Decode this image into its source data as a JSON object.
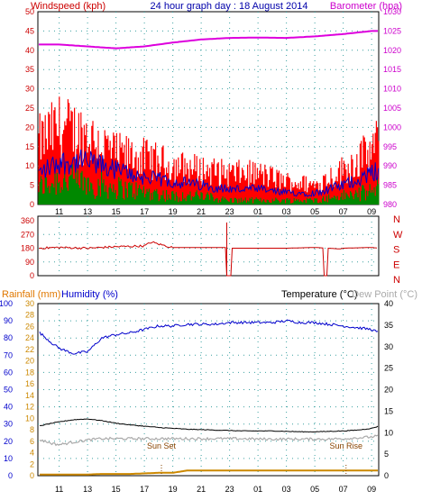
{
  "header": {
    "windspeed_label": "Windspeed (kph)",
    "title": "24 hour graph day : 18 August 2014",
    "barometer_label": "Barometer (hpa)"
  },
  "colors": {
    "panel_bg": "#ffffff",
    "grid": "#3aa0a0",
    "axis_left_red": "#cc0000",
    "axis_right_magenta": "#cc00cc",
    "wind_gust": "#ff0000",
    "wind_avg": "#0000cc",
    "wind_low": "#008800",
    "barometer": "#dd00dd",
    "direction": "#cc0000",
    "humidity": "#0000cc",
    "rain_label": "#e07800",
    "rain_axis": "#cc8800",
    "humidity_label": "#0000cc",
    "temperature": "#000000",
    "dew_point": "#aaaaaa",
    "humidity_axis": "#0000cc"
  },
  "x_ticks": [
    "11",
    "13",
    "15",
    "17",
    "19",
    "21",
    "23",
    "01",
    "03",
    "05",
    "07",
    "09"
  ],
  "chart_data": [
    {
      "type": "line",
      "panel": "wind_barometer",
      "title": "24 hour graph day : 18 August 2014",
      "y_left": {
        "label": "Windspeed (kph)",
        "range": [
          0,
          50
        ],
        "ticks": [
          "0",
          "5",
          "10",
          "15",
          "20",
          "25",
          "30",
          "35",
          "40",
          "45",
          "50"
        ]
      },
      "y_right": {
        "label": "Barometer (hpa)",
        "range": [
          980,
          1030
        ],
        "ticks": [
          "980",
          "985",
          "990",
          "995",
          "1000",
          "1005",
          "1010",
          "1015",
          "1020",
          "1025",
          "1030"
        ]
      },
      "x_hours": [
        9.5,
        11,
        13,
        15,
        17,
        19,
        21,
        23,
        25,
        27,
        29,
        31,
        33,
        33.5
      ],
      "series": [
        {
          "values": [
            16,
            20,
            18,
            13,
            12,
            10,
            9,
            8,
            8,
            6,
            5,
            9,
            14,
            16
          ],
          "style": "gust-band"
        },
        {
          "values": [
            8,
            11,
            11,
            9,
            7,
            6,
            5,
            4,
            4,
            3,
            3,
            5,
            8,
            9
          ],
          "style": "average"
        },
        {
          "values": [
            4,
            6,
            5,
            4,
            3,
            2,
            2,
            1,
            1,
            1,
            1,
            2,
            3,
            4
          ],
          "style": "low-band"
        },
        {
          "values": [
            1021.5,
            1021.5,
            1021,
            1020.5,
            1021,
            1022,
            1022.8,
            1023.2,
            1023.3,
            1023.2,
            1023.6,
            1024.2,
            1025,
            1025
          ],
          "axis": "right"
        }
      ]
    },
    {
      "type": "line",
      "panel": "wind_direction",
      "y_left": {
        "range": [
          0,
          360
        ],
        "ticks": [
          "0",
          "90",
          "180",
          "270",
          "360"
        ]
      },
      "y_right_labels": [
        "N",
        "W",
        "S",
        "E",
        "N"
      ],
      "x_hours": [
        9.5,
        11,
        13,
        15,
        17,
        17.5,
        18.5,
        19,
        21,
        23,
        23.1,
        25,
        27,
        29,
        29.9,
        30.8,
        31,
        33,
        33.5
      ],
      "series": [
        {
          "values": [
            180,
            185,
            180,
            190,
            195,
            220,
            195,
            185,
            185,
            185,
            180,
            180,
            180,
            185,
            180,
            175,
            180,
            185,
            180
          ]
        }
      ],
      "dropouts_hours": [
        22.8,
        23.1,
        29.6,
        29.9
      ]
    },
    {
      "type": "line",
      "panel": "rain_humidity_temperature",
      "rain_axis": {
        "label": "Rainfall (mm)",
        "range": [
          0,
          30
        ],
        "ticks": [
          "0",
          "2",
          "4",
          "6",
          "8",
          "10",
          "12",
          "14",
          "16",
          "18",
          "20",
          "22",
          "24",
          "26",
          "28",
          "30"
        ]
      },
      "humidity_axis": {
        "label": "Humidity (%)",
        "range": [
          0,
          100
        ],
        "ticks": [
          "0",
          "10",
          "20",
          "30",
          "40",
          "50",
          "60",
          "70",
          "80",
          "90",
          "100"
        ]
      },
      "temperature_axis": {
        "label": "Temperature (°C)",
        "range": [
          0,
          40
        ],
        "ticks": [
          "0",
          "5",
          "10",
          "15",
          "20",
          "25",
          "30",
          "35",
          "40"
        ]
      },
      "dew_point_label": "Dew Point (°C)",
      "x_hours": [
        9.5,
        10.5,
        11,
        12,
        13,
        14,
        15,
        16,
        17,
        18,
        19,
        20,
        21,
        22,
        23,
        24,
        25,
        26,
        27,
        28,
        29,
        30,
        31,
        32,
        33,
        33.5
      ],
      "series": [
        {
          "name": "Humidity (%)",
          "axis": "humidity",
          "values": [
            84,
            77,
            74,
            71,
            72,
            80,
            82,
            83,
            85,
            87,
            87,
            88,
            88,
            88,
            89,
            89,
            89,
            89,
            90,
            89,
            89,
            88,
            87,
            86,
            85,
            83
          ]
        },
        {
          "name": "Temperature (°C)",
          "axis": "temperature",
          "values": [
            11.5,
            12.2,
            12.5,
            13,
            13.2,
            12.8,
            12.2,
            11.8,
            11.5,
            11.2,
            11,
            10.8,
            10.7,
            10.6,
            10.5,
            10.4,
            10.4,
            10.4,
            10.3,
            10.2,
            10.2,
            10.3,
            10.4,
            10.6,
            11,
            11.5
          ]
        },
        {
          "name": "Dew Point (°C)",
          "axis": "temperature",
          "values": [
            8.5,
            7.5,
            7.2,
            7.8,
            8.3,
            8.6,
            8.6,
            8.6,
            8.6,
            8.6,
            8.6,
            8.6,
            8.6,
            8.6,
            8.6,
            8.6,
            8.5,
            8.5,
            8.5,
            8.5,
            8.5,
            8.5,
            8.6,
            8.8,
            9.0,
            9.3
          ]
        },
        {
          "name": "Rainfall (mm)",
          "axis": "rain",
          "values": [
            0.2,
            0.2,
            0.2,
            0.2,
            0.2,
            0.3,
            0.3,
            0.3,
            0.4,
            0.5,
            0.5,
            0.9,
            0.9,
            0.9,
            0.9,
            0.9,
            0.9,
            0.9,
            0.9,
            0.9,
            0.9,
            0.9,
            0.9,
            0.9,
            0.9,
            0.9
          ]
        }
      ],
      "annotations": [
        {
          "text": "Sun Set",
          "hour": 18.2
        },
        {
          "text": "Sun Rise",
          "hour": 31.2
        }
      ]
    }
  ]
}
